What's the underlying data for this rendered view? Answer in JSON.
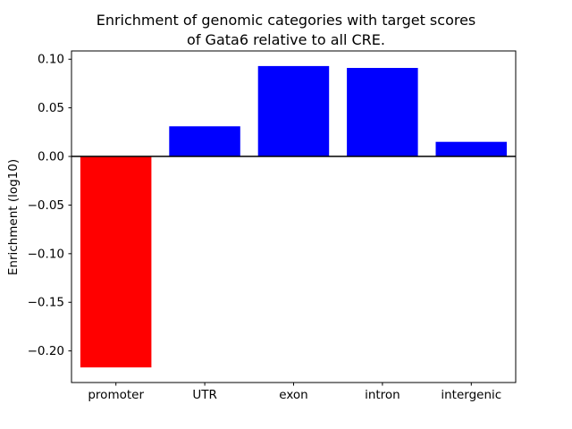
{
  "chart_data": {
    "type": "bar",
    "title": "Enrichment of genomic categories with target scores\nof Gata6 relative to all CRE.",
    "ylabel": "Enrichment (log10)",
    "xlabel": "",
    "categories": [
      "promoter",
      "UTR",
      "exon",
      "intron",
      "intergenic"
    ],
    "values": [
      -0.217,
      0.031,
      0.093,
      0.091,
      0.015
    ],
    "bar_colors": [
      "#ff0000",
      "#0000ff",
      "#0000ff",
      "#0000ff",
      "#0000ff"
    ],
    "ylim": [
      -0.2325,
      0.1085
    ],
    "yticks": [
      {
        "value": 0.1,
        "label": "0.10"
      },
      {
        "value": 0.05,
        "label": "0.05"
      },
      {
        "value": 0.0,
        "label": "0.00"
      },
      {
        "value": -0.05,
        "label": "−0.05"
      },
      {
        "value": -0.1,
        "label": "−0.10"
      },
      {
        "value": -0.15,
        "label": "−0.15"
      },
      {
        "value": -0.2,
        "label": "−0.20"
      }
    ],
    "zero_line": true,
    "grid": false,
    "legend": null
  }
}
